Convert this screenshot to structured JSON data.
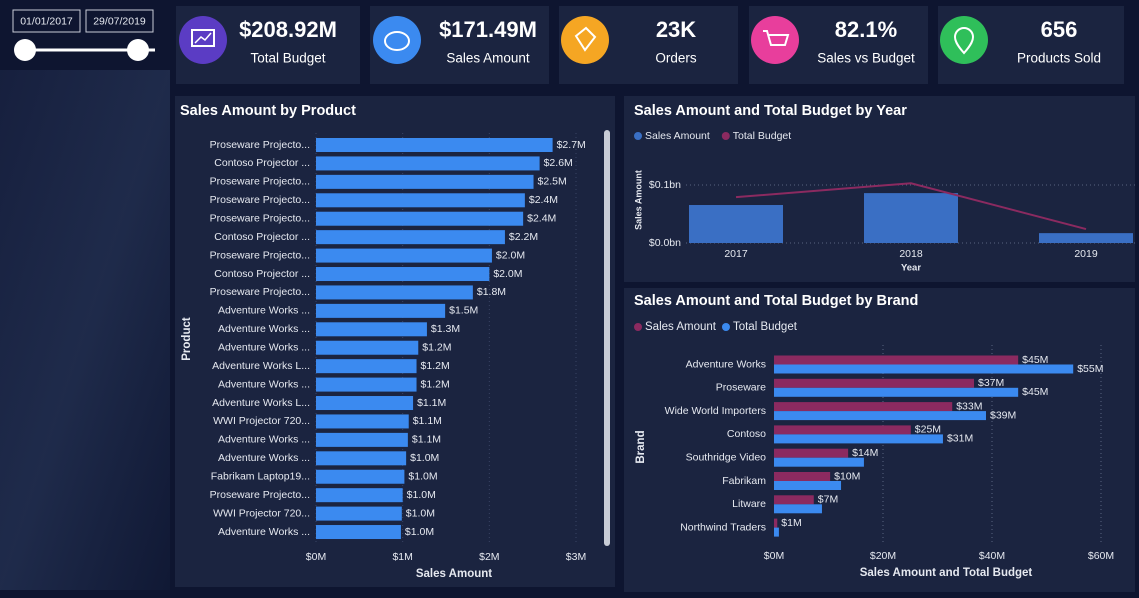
{
  "slicer": {
    "start": "01/01/2017",
    "end": "29/07/2019"
  },
  "kpis": [
    {
      "value": "$208.92M",
      "label": "Total Budget"
    },
    {
      "value": "$171.49M",
      "label": "Sales Amount"
    },
    {
      "value": "23K",
      "label": "Orders"
    },
    {
      "value": "82.1%",
      "label": "Sales vs Budget"
    },
    {
      "value": "656",
      "label": "Products Sold"
    }
  ],
  "chart_data": [
    {
      "type": "hbar",
      "title": "Sales Amount by Product",
      "xlabel": "Sales Amount",
      "ylabel": "Product",
      "color": "#3b8af0",
      "grid": true,
      "categories": [
        "Proseware Projecto...",
        "Contoso Projector ...",
        "Proseware Projecto...",
        "Proseware Projecto...",
        "Proseware Projecto...",
        "Contoso Projector ...",
        "Proseware Projecto...",
        "Contoso Projector ...",
        "Proseware Projecto...",
        "Adventure Works ...",
        "Adventure Works ...",
        "Adventure Works ...",
        "Adventure Works L...",
        "Adventure Works ...",
        "Adventure Works L...",
        "WWI Projector 720...",
        "Adventure Works ...",
        "Adventure Works ...",
        "Fabrikam Laptop19...",
        "Proseware Projecto...",
        "WWI Projector 720...",
        "Adventure Works ..."
      ],
      "values": [
        2.73,
        2.58,
        2.51,
        2.41,
        2.39,
        2.18,
        2.03,
        2.0,
        1.81,
        1.49,
        1.28,
        1.18,
        1.16,
        1.16,
        1.12,
        1.07,
        1.06,
        1.04,
        1.02,
        1.0,
        0.99,
        0.98
      ],
      "value_labels": [
        "$2.7M",
        "$2.6M",
        "$2.5M",
        "$2.4M",
        "$2.4M",
        "$2.2M",
        "$2.0M",
        "$2.0M",
        "$1.8M",
        "$1.5M",
        "$1.3M",
        "$1.2M",
        "$1.2M",
        "$1.2M",
        "$1.1M",
        "$1.1M",
        "$1.1M",
        "$1.0M",
        "$1.0M",
        "$1.0M",
        "$1.0M",
        "$1.0M"
      ],
      "xlim": [
        0,
        3
      ],
      "xticks": [
        {
          "value": 0,
          "label": "$0M"
        },
        {
          "value": 1,
          "label": "$1M"
        },
        {
          "value": 2,
          "label": "$2M"
        },
        {
          "value": 3,
          "label": "$3M"
        }
      ]
    },
    {
      "type": "bar_line",
      "title": "Sales Amount and Total Budget by Year",
      "xlabel": "Year",
      "ylabel": "Sales Amount",
      "grid": true,
      "categories": [
        "2017",
        "2018",
        "2019"
      ],
      "series": [
        {
          "name": "Sales Amount",
          "color": "#3a6fc4",
          "type": "bar",
          "values": [
            0.0655,
            0.086,
            0.017
          ]
        },
        {
          "name": "Total Budget",
          "color": "#8b2a60",
          "type": "line",
          "values": [
            0.079,
            0.103,
            0.024
          ]
        }
      ],
      "ylim": [
        0,
        0.12
      ],
      "yticks": [
        {
          "value": 0,
          "label": "$0.0bn"
        },
        {
          "value": 0.1,
          "label": "$0.1bn"
        }
      ]
    },
    {
      "type": "grouped_hbar",
      "title": "Sales Amount and Total Budget by Brand",
      "xlabel": "Sales Amount and Total Budget",
      "ylabel": "Brand",
      "grid": true,
      "categories": [
        "Adventure Works",
        "Proseware",
        "Wide World Importers",
        "Contoso",
        "Southridge Video",
        "Fabrikam",
        "Litware",
        "Northwind Traders"
      ],
      "series": [
        {
          "name": "Sales Amount",
          "color": "#8b2a60",
          "values": [
            44.8,
            36.7,
            32.7,
            25.1,
            13.6,
            10.3,
            7.3,
            0.6
          ],
          "value_labels": [
            "$45M",
            "$37M",
            "$33M",
            "$25M",
            "$14M",
            "$10M",
            "$7M",
            "$1M"
          ]
        },
        {
          "name": "Total Budget",
          "color": "#3b8af0",
          "values": [
            54.9,
            44.8,
            38.9,
            31.0,
            16.5,
            12.3,
            8.8,
            0.9
          ],
          "value_labels": [
            "$55M",
            "$45M",
            "$39M",
            "$31M",
            null,
            null,
            null,
            null
          ]
        }
      ],
      "xlim": [
        0,
        60
      ],
      "xticks": [
        {
          "value": 0,
          "label": "$0M"
        },
        {
          "value": 20,
          "label": "$20M"
        },
        {
          "value": 40,
          "label": "$40M"
        },
        {
          "value": 60,
          "label": "$60M"
        }
      ]
    }
  ]
}
